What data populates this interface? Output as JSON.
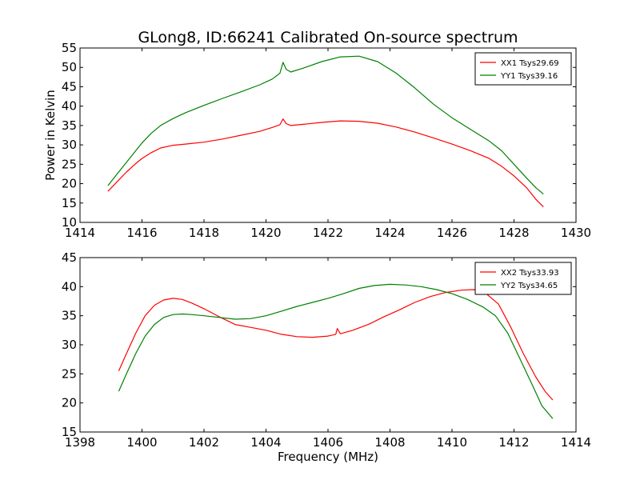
{
  "figure_title": "GLong8, ID:66241 Calibrated On-source spectrum",
  "chart_data": [
    {
      "type": "line",
      "title": "GLong8, ID:66241 Calibrated On-source spectrum",
      "xlabel": "",
      "ylabel": "Power in Kelvin",
      "xlim": [
        1414,
        1430
      ],
      "ylim": [
        10,
        55
      ],
      "xticks": [
        1414,
        1416,
        1418,
        1420,
        1422,
        1424,
        1426,
        1428,
        1430
      ],
      "yticks": [
        10,
        15,
        20,
        25,
        30,
        35,
        40,
        45,
        50,
        55
      ],
      "grid": false,
      "legend_placement": "top-right",
      "series": [
        {
          "name": "XX1 Tsys29.69",
          "color": "#ff0000",
          "x": [
            1414.9,
            1415.2,
            1415.5,
            1415.8,
            1416.0,
            1416.3,
            1416.6,
            1417.0,
            1417.4,
            1418.0,
            1418.6,
            1419.2,
            1419.8,
            1420.2,
            1420.45,
            1420.55,
            1420.65,
            1420.8,
            1421.2,
            1421.8,
            1422.4,
            1423.0,
            1423.6,
            1424.2,
            1424.8,
            1425.4,
            1426.0,
            1426.6,
            1427.2,
            1427.6,
            1428.0,
            1428.4,
            1428.7,
            1428.95
          ],
          "y": [
            18.0,
            20.5,
            23.0,
            25.2,
            26.5,
            28.0,
            29.2,
            29.9,
            30.2,
            30.7,
            31.5,
            32.5,
            33.5,
            34.5,
            35.2,
            36.7,
            35.5,
            35.0,
            35.3,
            35.8,
            36.2,
            36.1,
            35.6,
            34.6,
            33.3,
            31.8,
            30.2,
            28.5,
            26.5,
            24.5,
            22.0,
            19.0,
            16.0,
            14.0
          ]
        },
        {
          "name": "YY1 Tsys39.16",
          "color": "#008000",
          "x": [
            1414.9,
            1415.2,
            1415.5,
            1415.8,
            1416.0,
            1416.3,
            1416.6,
            1417.0,
            1417.4,
            1418.0,
            1418.6,
            1419.2,
            1419.8,
            1420.2,
            1420.45,
            1420.55,
            1420.65,
            1420.8,
            1421.2,
            1421.8,
            1422.4,
            1423.0,
            1423.6,
            1424.2,
            1424.8,
            1425.4,
            1426.0,
            1426.6,
            1427.2,
            1427.6,
            1428.0,
            1428.4,
            1428.7,
            1428.95
          ],
          "y": [
            19.5,
            22.5,
            25.5,
            28.5,
            30.5,
            33.0,
            35.0,
            36.8,
            38.3,
            40.2,
            42.0,
            43.7,
            45.5,
            47.0,
            48.5,
            51.3,
            49.5,
            48.8,
            49.8,
            51.5,
            52.7,
            52.9,
            51.5,
            48.5,
            44.7,
            40.5,
            37.0,
            34.0,
            31.0,
            28.5,
            25.0,
            21.5,
            19.0,
            17.3
          ]
        }
      ]
    },
    {
      "type": "line",
      "title": "",
      "xlabel": "Frequency (MHz)",
      "ylabel": "",
      "xlim": [
        1398,
        1414
      ],
      "ylim": [
        15,
        45
      ],
      "xticks": [
        1398,
        1400,
        1402,
        1404,
        1406,
        1408,
        1410,
        1412,
        1414
      ],
      "yticks": [
        15,
        20,
        25,
        30,
        35,
        40,
        45
      ],
      "grid": false,
      "legend_placement": "top-right",
      "series": [
        {
          "name": "XX2 Tsys33.93",
          "color": "#ff0000",
          "x": [
            1399.25,
            1399.5,
            1399.8,
            1400.1,
            1400.4,
            1400.7,
            1401.0,
            1401.3,
            1401.6,
            1402.0,
            1402.5,
            1403.0,
            1403.5,
            1404.0,
            1404.5,
            1405.0,
            1405.5,
            1406.0,
            1406.25,
            1406.3,
            1406.4,
            1406.8,
            1407.3,
            1407.8,
            1408.3,
            1408.8,
            1409.3,
            1409.8,
            1410.3,
            1410.7,
            1411.1,
            1411.5,
            1411.9,
            1412.3,
            1412.7,
            1413.0,
            1413.25
          ],
          "y": [
            25.5,
            28.5,
            32.0,
            35.0,
            36.8,
            37.7,
            38.0,
            37.8,
            37.2,
            36.2,
            34.8,
            33.5,
            33.0,
            32.5,
            31.8,
            31.4,
            31.3,
            31.5,
            31.8,
            32.8,
            31.9,
            32.5,
            33.5,
            34.8,
            36.0,
            37.3,
            38.3,
            39.0,
            39.4,
            39.5,
            38.8,
            37.0,
            33.0,
            28.5,
            24.5,
            22.0,
            20.5
          ]
        },
        {
          "name": "YY2 Tsys34.65",
          "color": "#008000",
          "x": [
            1399.25,
            1399.5,
            1399.8,
            1400.1,
            1400.4,
            1400.7,
            1401.0,
            1401.3,
            1401.6,
            1402.0,
            1402.5,
            1403.0,
            1403.5,
            1404.0,
            1404.5,
            1405.0,
            1405.5,
            1406.0,
            1406.5,
            1407.0,
            1407.5,
            1408.0,
            1408.5,
            1409.0,
            1409.5,
            1410.0,
            1410.5,
            1411.0,
            1411.4,
            1411.8,
            1412.2,
            1412.6,
            1412.9,
            1413.25
          ],
          "y": [
            22.0,
            25.0,
            28.5,
            31.5,
            33.5,
            34.7,
            35.2,
            35.3,
            35.2,
            35.0,
            34.7,
            34.4,
            34.5,
            35.0,
            35.8,
            36.6,
            37.3,
            38.0,
            38.8,
            39.7,
            40.2,
            40.4,
            40.3,
            40.0,
            39.5,
            38.8,
            37.8,
            36.5,
            35.0,
            32.0,
            27.5,
            23.0,
            19.5,
            17.3
          ]
        }
      ]
    }
  ]
}
